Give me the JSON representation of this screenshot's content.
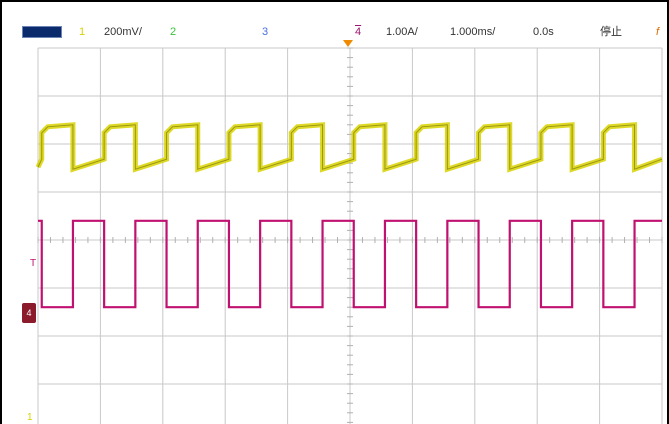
{
  "status_bar": {
    "ch1_label": "1",
    "ch1_scale": "200mV/",
    "ch2_label": "2",
    "ch3_label": "3",
    "ch4_label": "4",
    "ch4_scale": "1.00A/",
    "timebase": "1.000ms/",
    "delay": "0.0s",
    "run_state": "停止",
    "trigger_icon": "f"
  },
  "markers": {
    "ch1": "1",
    "trigger": "T",
    "ch4": "4"
  },
  "colors": {
    "ch1": "#d8d200",
    "ch4": "#c01070",
    "grid": "#c8c8c8"
  },
  "icons": {
    "logo": "brand-logo-icon",
    "trigger": "trigger-edge-icon"
  },
  "chart_data": {
    "type": "line",
    "x_divisions": 10,
    "y_divisions": 8,
    "series": [
      {
        "channel": "1",
        "color": "#d8d200",
        "waveform": "square-with-droop",
        "cycles": 10,
        "high_div": 1.6,
        "low_div": 2.4
      },
      {
        "channel": "4",
        "color": "#c01070",
        "waveform": "square",
        "cycles": 10,
        "high_div": 3.6,
        "low_div": 5.4
      }
    ]
  }
}
